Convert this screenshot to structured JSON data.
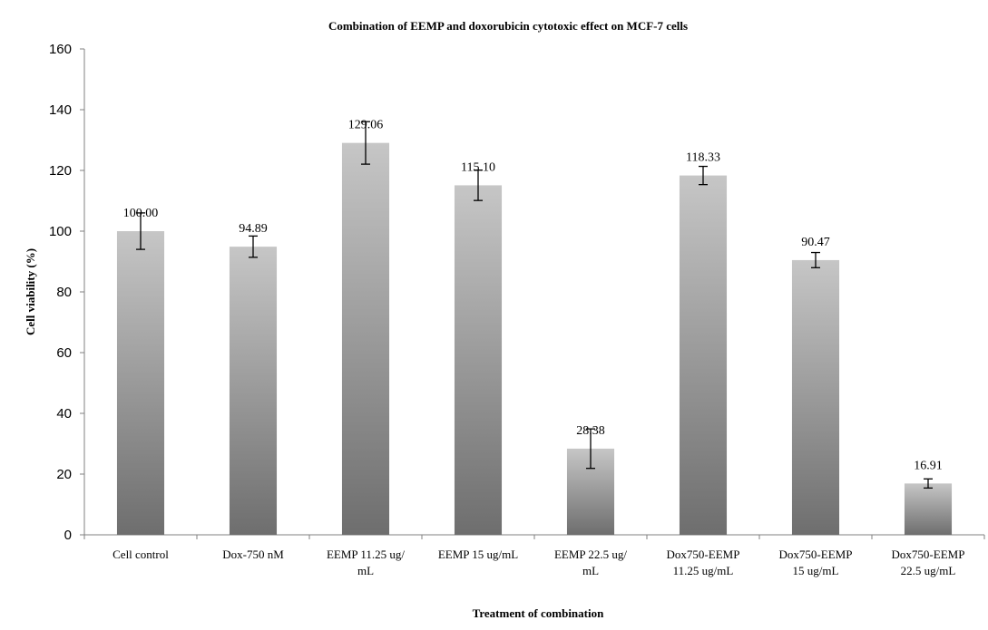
{
  "chart_data": {
    "type": "bar",
    "title": "Combination of EEMP and doxorubicin cytotoxic effect on MCF-7 cells",
    "xlabel": "Treatment of combination",
    "ylabel": "Cell viability  (%)",
    "ylim": [
      0,
      160
    ],
    "yticks": [
      0,
      20,
      40,
      60,
      80,
      100,
      120,
      140,
      160
    ],
    "grid": false,
    "legend": "none",
    "categories": [
      [
        "Cell control"
      ],
      [
        "Dox-750 nM"
      ],
      [
        "EEMP 11.25 ug/",
        "mL"
      ],
      [
        "EEMP 15 ug/mL"
      ],
      [
        "EEMP 22.5 ug/",
        "mL"
      ],
      [
        "Dox750-EEMP",
        "11.25 ug/mL"
      ],
      [
        "Dox750-EEMP",
        "15 ug/mL"
      ],
      [
        "Dox750-EEMP",
        "22.5 ug/mL"
      ]
    ],
    "values": [
      100.0,
      94.89,
      129.06,
      115.1,
      28.38,
      118.33,
      90.47,
      16.91
    ],
    "data_labels": [
      "100.00",
      "94.89",
      "129.06",
      "115.10",
      "28.38",
      "118.33",
      "90.47",
      "16.91"
    ],
    "error": [
      6.0,
      3.5,
      7.0,
      5.0,
      6.5,
      3.0,
      2.5,
      1.5
    ],
    "colors": {
      "bar_top": "#c6c6c6",
      "bar_bottom": "#6e6e6e",
      "axis": "#808080"
    }
  }
}
